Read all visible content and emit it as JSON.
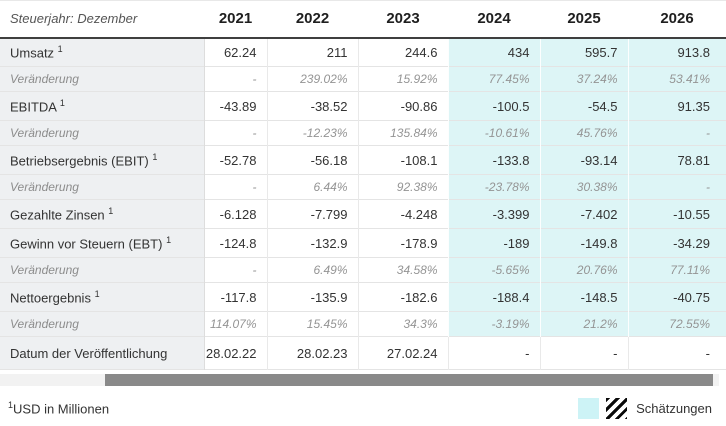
{
  "header": {
    "title": "Steuerjahr: Dezember"
  },
  "chart_data": {
    "type": "table",
    "title": "Steuerjahr: Dezember",
    "columns": [
      "2021",
      "2022",
      "2023",
      "2024",
      "2025",
      "2026"
    ],
    "estimate_columns": [
      "2024",
      "2025",
      "2026"
    ],
    "estimate_start_index": 3,
    "unit_note": "USD in Millionen",
    "rows": [
      {
        "style": "main",
        "label": "Umsatz",
        "footnote_marker": "1",
        "values": [
          "62.24",
          "211",
          "244.6",
          "434",
          "595.7",
          "913.8"
        ]
      },
      {
        "style": "change",
        "label": "Veränderung",
        "footnote_marker": "",
        "values": [
          "-",
          "239.02%",
          "15.92%",
          "77.45%",
          "37.24%",
          "53.41%"
        ]
      },
      {
        "style": "main",
        "label": "EBITDA",
        "footnote_marker": "1",
        "values": [
          "-43.89",
          "-38.52",
          "-90.86",
          "-100.5",
          "-54.5",
          "91.35"
        ]
      },
      {
        "style": "change",
        "label": "Veränderung",
        "footnote_marker": "",
        "values": [
          "-",
          "-12.23%",
          "135.84%",
          "-10.61%",
          "45.76%",
          "-"
        ]
      },
      {
        "style": "main",
        "label": "Betriebsergebnis (EBIT)",
        "footnote_marker": "1",
        "values": [
          "-52.78",
          "-56.18",
          "-108.1",
          "-133.8",
          "-93.14",
          "78.81"
        ]
      },
      {
        "style": "change",
        "label": "Veränderung",
        "footnote_marker": "",
        "values": [
          "-",
          "6.44%",
          "92.38%",
          "-23.78%",
          "30.38%",
          "-"
        ]
      },
      {
        "style": "main",
        "label": "Gezahlte Zinsen",
        "footnote_marker": "1",
        "values": [
          "-6.128",
          "-7.799",
          "-4.248",
          "-3.399",
          "-7.402",
          "-10.55"
        ]
      },
      {
        "style": "main",
        "label": "Gewinn vor Steuern (EBT)",
        "footnote_marker": "1",
        "values": [
          "-124.8",
          "-132.9",
          "-178.9",
          "-189",
          "-149.8",
          "-34.29"
        ]
      },
      {
        "style": "change",
        "label": "Veränderung",
        "footnote_marker": "",
        "values": [
          "-",
          "6.49%",
          "34.58%",
          "-5.65%",
          "20.76%",
          "77.11%"
        ]
      },
      {
        "style": "main",
        "label": "Nettoergebnis",
        "footnote_marker": "1",
        "values": [
          "-117.8",
          "-135.9",
          "-182.6",
          "-188.4",
          "-148.5",
          "-40.75"
        ]
      },
      {
        "style": "change",
        "label": "Veränderung",
        "footnote_marker": "",
        "values": [
          "114.07%",
          "15.45%",
          "34.3%",
          "-3.19%",
          "21.2%",
          "72.55%"
        ]
      },
      {
        "style": "date",
        "label": "Datum der Veröffentlichung",
        "footnote_marker": "",
        "values": [
          "28.02.22",
          "28.02.23",
          "27.02.24",
          "-",
          "-",
          "-"
        ]
      }
    ]
  },
  "footer": {
    "footnote_marker": "1",
    "footnote_text": "USD in Millionen",
    "legend_label": "Schätzungen"
  },
  "colors": {
    "estimate_cell_bg": "#ddf5f6",
    "estimate_legend_swatch": "#cdf3f6",
    "label_column_bg": "#eef0f2",
    "scrollbar_thumb": "#898989",
    "scrollbar_track": "#f2f2f2"
  }
}
